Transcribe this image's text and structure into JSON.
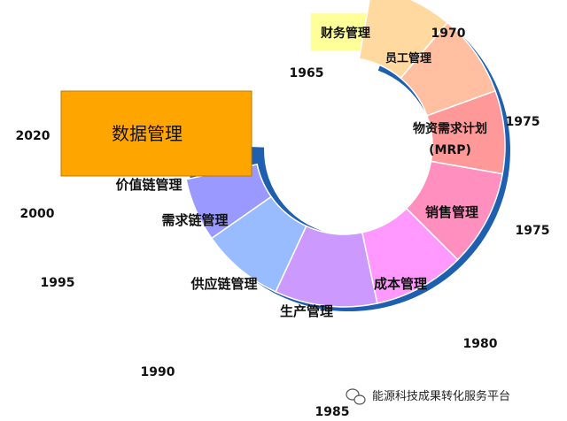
{
  "segments": [
    {
      "key": "finance",
      "label": "财务管理",
      "color": "#FFFF99"
    },
    {
      "key": "hr",
      "label": "员工管理",
      "color": "#FFD9A0"
    },
    {
      "key": "mrp",
      "label": "物资需求计划",
      "label2": "(MRP)",
      "color": "#FFBFA0"
    },
    {
      "key": "sales",
      "label": "销售管理",
      "color": "#FF9999"
    },
    {
      "key": "cost",
      "label": "成本管理",
      "color": "#FF8FBF"
    },
    {
      "key": "production",
      "label": "生产管理",
      "color": "#FF99FF"
    },
    {
      "key": "supply",
      "label": "供应链管理",
      "color": "#CC99FF"
    },
    {
      "key": "demand",
      "label": "需求链管理",
      "color": "#99BBFF"
    },
    {
      "key": "value",
      "label": "价值链管理",
      "color": "#9999FF"
    },
    {
      "key": "data",
      "label": "数据管理",
      "color": "#FFA500"
    }
  ],
  "years": {
    "y1965": "1965",
    "y1970": "1970",
    "y1975a": "1975",
    "y1975b": "1975",
    "y1980": "1980",
    "y1985": "1985",
    "y1990": "1990",
    "y1995": "1995",
    "y2000": "2000",
    "y2020": "2020"
  },
  "watermark": {
    "text": "能源科技成果转化服务平台"
  },
  "colors": {
    "ring_shadow": "#1F5FAF"
  }
}
